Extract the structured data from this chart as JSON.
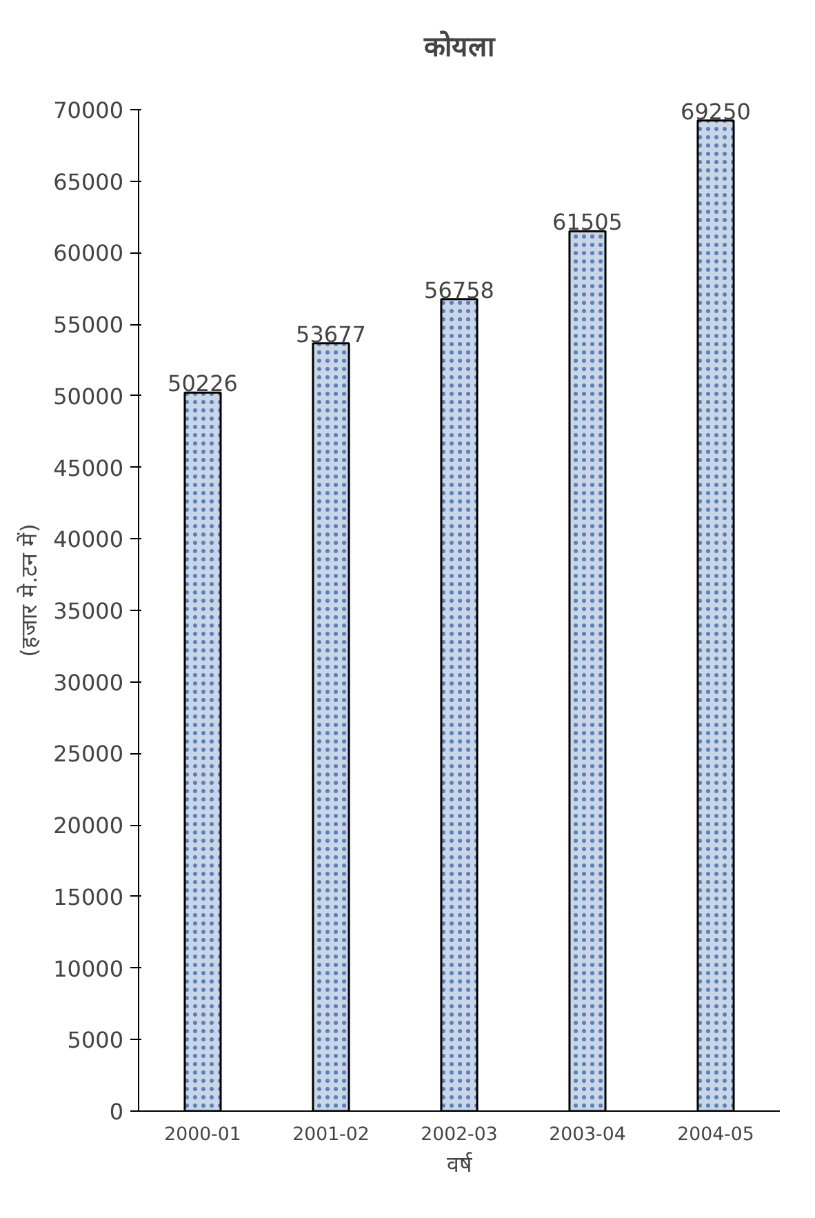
{
  "chart_data": {
    "type": "bar",
    "title": "कोयला",
    "xlabel": "वर्ष",
    "ylabel": "(हजार मे.टन में)",
    "categories": [
      "2000-01",
      "2001-02",
      "2002-03",
      "2003-04",
      "2004-05"
    ],
    "values": [
      50226,
      53677,
      56758,
      61505,
      69250
    ],
    "color": "#c9d6e8",
    "ylim": [
      0,
      70000
    ],
    "yticks": [
      0,
      5000,
      10000,
      15000,
      20000,
      25000,
      30000,
      35000,
      40000,
      45000,
      50000,
      55000,
      60000,
      65000,
      70000
    ],
    "grid": false,
    "data_labels": true
  }
}
